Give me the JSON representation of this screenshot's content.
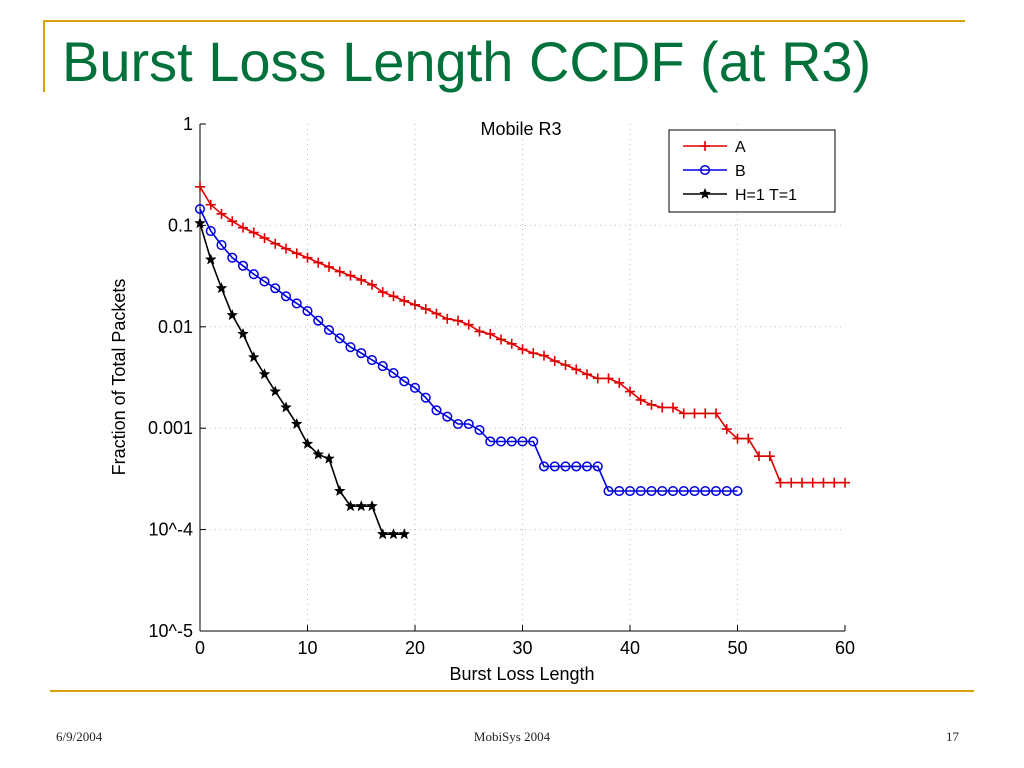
{
  "slide": {
    "title": "Burst Loss Length CCDF (at R3)",
    "footer_left": "6/9/2004",
    "footer_center": "MobiSys 2004",
    "footer_right": "17",
    "accent_color": "#d9a400",
    "title_color": "#00713a"
  },
  "chart_data": {
    "type": "line",
    "title": "Mobile R3",
    "xlabel": "Burst Loss Length",
    "ylabel": "Fraction of Total Packets",
    "xlim": [
      0,
      60
    ],
    "ylim": [
      1e-05,
      1
    ],
    "yscale": "log",
    "grid": true,
    "legend_position": "top-right",
    "x_ticks": [
      {
        "value": 0,
        "label": "0"
      },
      {
        "value": 10,
        "label": "10"
      },
      {
        "value": 20,
        "label": "20"
      },
      {
        "value": 30,
        "label": "30"
      },
      {
        "value": 40,
        "label": "40"
      },
      {
        "value": 50,
        "label": "50"
      },
      {
        "value": 60,
        "label": "60"
      }
    ],
    "y_ticks": [
      {
        "value": 1,
        "label": "1"
      },
      {
        "value": 0.1,
        "label": "0.1"
      },
      {
        "value": 0.01,
        "label": "0.01"
      },
      {
        "value": 0.001,
        "label": "0.001"
      },
      {
        "value": 0.0001,
        "label": "10^-4"
      },
      {
        "value": 1e-05,
        "label": "10^-5"
      }
    ],
    "series": [
      {
        "name": "A",
        "color": "#e00000",
        "marker": "plus",
        "x": [
          0,
          1,
          2,
          3,
          4,
          5,
          6,
          7,
          8,
          9,
          10,
          11,
          12,
          13,
          14,
          15,
          16,
          17,
          18,
          19,
          20,
          21,
          22,
          23,
          24,
          25,
          26,
          27,
          28,
          29,
          30,
          31,
          32,
          33,
          34,
          35,
          36,
          37,
          38,
          39,
          40,
          41,
          42,
          43,
          44,
          45,
          46,
          47,
          48,
          49,
          50,
          51,
          52,
          53,
          54,
          55,
          56,
          57,
          58,
          59,
          60
        ],
        "y": [
          0.24,
          0.16,
          0.13,
          0.11,
          0.095,
          0.085,
          0.075,
          0.066,
          0.059,
          0.053,
          0.048,
          0.043,
          0.039,
          0.035,
          0.032,
          0.029,
          0.026,
          0.022,
          0.02,
          0.018,
          0.0165,
          0.015,
          0.0135,
          0.012,
          0.0115,
          0.0105,
          0.009,
          0.0085,
          0.0075,
          0.0068,
          0.006,
          0.0055,
          0.0052,
          0.0046,
          0.0042,
          0.0038,
          0.0034,
          0.0031,
          0.0031,
          0.0028,
          0.0023,
          0.0019,
          0.0017,
          0.0016,
          0.0016,
          0.0014,
          0.0014,
          0.0014,
          0.0014,
          0.00098,
          0.00079,
          0.00079,
          0.00053,
          0.00053,
          0.00029,
          0.00029,
          0.00029,
          0.00029,
          0.00029,
          0.00029,
          0.00029
        ]
      },
      {
        "name": "B",
        "color": "#0000e0",
        "marker": "circle",
        "x": [
          0,
          1,
          2,
          3,
          4,
          5,
          6,
          7,
          8,
          9,
          10,
          11,
          12,
          13,
          14,
          15,
          16,
          17,
          18,
          19,
          20,
          21,
          22,
          23,
          24,
          25,
          26,
          27,
          28,
          29,
          30,
          31,
          32,
          33,
          34,
          35,
          36,
          37,
          38,
          39,
          40,
          41,
          42,
          43,
          44,
          45,
          46,
          47,
          48,
          49,
          50
        ],
        "y": [
          0.145,
          0.088,
          0.064,
          0.048,
          0.04,
          0.033,
          0.028,
          0.024,
          0.02,
          0.017,
          0.0143,
          0.0115,
          0.0093,
          0.0077,
          0.0063,
          0.0055,
          0.0047,
          0.0041,
          0.0035,
          0.0029,
          0.0025,
          0.002,
          0.0015,
          0.0013,
          0.0011,
          0.0011,
          0.00096,
          0.00074,
          0.00074,
          0.00074,
          0.00074,
          0.00074,
          0.00042,
          0.00042,
          0.00042,
          0.00042,
          0.00042,
          0.00042,
          0.00024,
          0.00024,
          0.00024,
          0.00024,
          0.00024,
          0.00024,
          0.00024,
          0.00024,
          0.00024,
          0.00024,
          0.00024,
          0.00024,
          0.00024
        ]
      },
      {
        "name": "H=1 T=1",
        "color": "#000000",
        "marker": "star",
        "x": [
          0,
          1,
          2,
          3,
          4,
          5,
          6,
          7,
          8,
          9,
          10,
          11,
          12,
          13,
          14,
          15,
          16,
          17,
          18,
          19
        ],
        "y": [
          0.105,
          0.046,
          0.024,
          0.013,
          0.0085,
          0.005,
          0.0034,
          0.0023,
          0.0016,
          0.0011,
          0.0007,
          0.00055,
          0.0005,
          0.00024,
          0.00017,
          0.00017,
          0.00017,
          9e-05,
          9e-05,
          9e-05
        ]
      }
    ]
  }
}
